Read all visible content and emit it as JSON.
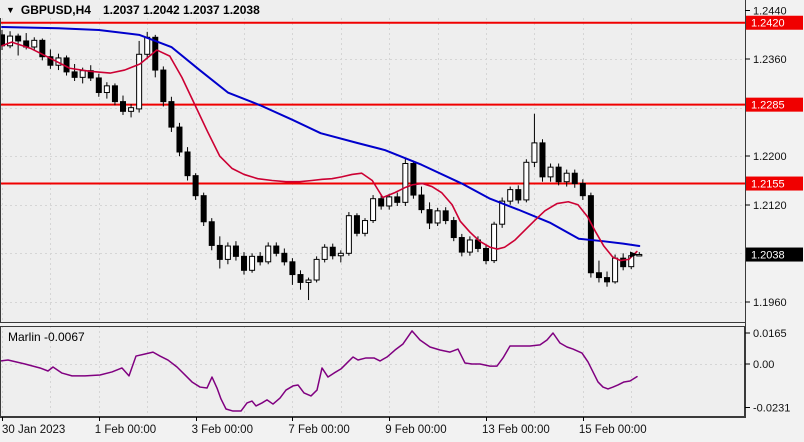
{
  "window": {
    "symbol_title": "GBPUSD,H4",
    "ohlc_readout": "1.2037 1.2042 1.2037 1.2038"
  },
  "chart_data": {
    "type": "candlestick",
    "symbol": "GBPUSD",
    "timeframe": "H4",
    "title": "GBPUSD,H4",
    "current_candle": {
      "open": 1.2037,
      "high": 1.2042,
      "low": 1.2037,
      "close": 1.2038
    },
    "current_price": 1.2038,
    "colors": {
      "background": "#eeeeee",
      "outer": "#f2f2f2",
      "grid": "#d5d5d5",
      "frame": "#3a3a3a",
      "level_line": "#f00000",
      "ma_slow": "#0000cc",
      "ma_fast": "#cc0033",
      "candle_up_fill": "#ffffff",
      "candle_down_fill": "#000000",
      "candle_stroke": "#000000",
      "indicator_line": "#800080",
      "badge_red": "#f00000",
      "badge_black": "#000000",
      "badge_text": "#ffffff",
      "axis_text": "#111111"
    },
    "price_axis": {
      "tick_labels": [
        {
          "label": "1.2440",
          "value": 1.244
        },
        {
          "label": "1.2360",
          "value": 1.236
        },
        {
          "label": "1.2200",
          "value": 1.22
        },
        {
          "label": "1.2120",
          "value": 1.212
        },
        {
          "label": "1.1960",
          "value": 1.196
        }
      ],
      "grid_top": 1.244,
      "grid_step": 0.008,
      "grid_count": 7,
      "badges": [
        {
          "label": "1.2420",
          "value": 1.242,
          "style": "red"
        },
        {
          "label": "1.2285",
          "value": 1.2285,
          "style": "red"
        },
        {
          "label": "1.2155",
          "value": 1.2155,
          "style": "red"
        },
        {
          "label": "1.2038",
          "value": 1.2038,
          "style": "black"
        }
      ]
    },
    "horizontal_lines": [
      1.242,
      1.2285,
      1.2155
    ],
    "x_axis": {
      "day_count": 14,
      "candles_per_day": 6,
      "labels": [
        {
          "day": 0,
          "label": "30 Jan 2023"
        },
        {
          "day": 2,
          "label": "1 Feb 00:00"
        },
        {
          "day": 4,
          "label": "3 Feb 00:00"
        },
        {
          "day": 6,
          "label": "7 Feb 00:00"
        },
        {
          "day": 8,
          "label": "9 Feb 00:00"
        },
        {
          "day": 10,
          "label": "13 Feb 00:00"
        },
        {
          "day": 12,
          "label": "15 Feb 00:00"
        }
      ]
    },
    "candles": [
      [
        1.24,
        1.2408,
        1.2375,
        1.2382
      ],
      [
        1.2382,
        1.2406,
        1.2378,
        1.2398
      ],
      [
        1.2398,
        1.2402,
        1.2366,
        1.239
      ],
      [
        1.239,
        1.2403,
        1.2376,
        1.238
      ],
      [
        1.238,
        1.2396,
        1.2374,
        1.2391
      ],
      [
        1.2391,
        1.2394,
        1.2358,
        1.2364
      ],
      [
        1.2364,
        1.2376,
        1.2344,
        1.235
      ],
      [
        1.235,
        1.2369,
        1.2342,
        1.2362
      ],
      [
        1.2362,
        1.2366,
        1.2333,
        1.2339
      ],
      [
        1.2339,
        1.2352,
        1.2324,
        1.233
      ],
      [
        1.233,
        1.2346,
        1.232,
        1.2341
      ],
      [
        1.2341,
        1.235,
        1.2324,
        1.2329
      ],
      [
        1.2329,
        1.2336,
        1.2298,
        1.2305
      ],
      [
        1.2305,
        1.2322,
        1.2295,
        1.2316
      ],
      [
        1.2316,
        1.232,
        1.2284,
        1.229
      ],
      [
        1.229,
        1.23,
        1.2268,
        1.2274
      ],
      [
        1.2274,
        1.2286,
        1.2264,
        1.228
      ],
      [
        1.2278,
        1.239,
        1.2272,
        1.2368
      ],
      [
        1.2368,
        1.2405,
        1.236,
        1.2396
      ],
      [
        1.2396,
        1.24,
        1.233,
        1.2342
      ],
      [
        1.2342,
        1.2348,
        1.2282,
        1.229
      ],
      [
        1.229,
        1.2298,
        1.224,
        1.2248
      ],
      [
        1.2248,
        1.2255,
        1.22,
        1.2207
      ],
      [
        1.2207,
        1.2215,
        1.216,
        1.2168
      ],
      [
        1.2168,
        1.2172,
        1.2128,
        1.2135
      ],
      [
        1.2135,
        1.214,
        1.2085,
        1.2092
      ],
      [
        1.2092,
        1.2098,
        1.2045,
        1.2053
      ],
      [
        1.2053,
        1.2068,
        1.2015,
        1.203
      ],
      [
        1.203,
        1.2058,
        1.2022,
        1.2052
      ],
      [
        1.2052,
        1.206,
        1.2028,
        1.2035
      ],
      [
        1.2035,
        1.2042,
        1.2005,
        1.2012
      ],
      [
        1.2012,
        1.204,
        1.2008,
        1.2035
      ],
      [
        1.2035,
        1.2042,
        1.202,
        1.2026
      ],
      [
        1.2026,
        1.2058,
        1.2022,
        1.2052
      ],
      [
        1.2052,
        1.2058,
        1.2035,
        1.204
      ],
      [
        1.204,
        1.2048,
        1.202,
        1.2026
      ],
      [
        1.2026,
        1.2032,
        1.1988,
        1.2005
      ],
      [
        1.2005,
        1.2012,
        1.198,
        1.1992
      ],
      [
        1.1992,
        1.2,
        1.1963,
        1.1996
      ],
      [
        1.1996,
        1.2035,
        1.1992,
        1.203
      ],
      [
        1.203,
        1.2055,
        1.2025,
        1.205
      ],
      [
        1.205,
        1.2056,
        1.203,
        1.2036
      ],
      [
        1.2036,
        1.2045,
        1.2025,
        1.204
      ],
      [
        1.204,
        1.2108,
        1.2036,
        1.2102
      ],
      [
        1.2102,
        1.2106,
        1.2068,
        1.2073
      ],
      [
        1.2073,
        1.2098,
        1.2068,
        1.2094
      ],
      [
        1.2094,
        1.2136,
        1.209,
        1.213
      ],
      [
        1.213,
        1.2136,
        1.2112,
        1.2118
      ],
      [
        1.2118,
        1.2138,
        1.2112,
        1.2133
      ],
      [
        1.2133,
        1.214,
        1.2118,
        1.2124
      ],
      [
        1.2124,
        1.2196,
        1.2118,
        1.2188
      ],
      [
        1.2188,
        1.2193,
        1.213,
        1.2136
      ],
      [
        1.2136,
        1.215,
        1.2106,
        1.2112
      ],
      [
        1.2112,
        1.2124,
        1.208,
        1.209
      ],
      [
        1.209,
        1.2115,
        1.2085,
        1.211
      ],
      [
        1.211,
        1.2116,
        1.2088,
        1.2094
      ],
      [
        1.2094,
        1.21,
        1.206,
        1.2066
      ],
      [
        1.2066,
        1.2072,
        1.2035,
        1.2042
      ],
      [
        1.2042,
        1.2068,
        1.2036,
        1.2062
      ],
      [
        1.2062,
        1.2068,
        1.2042,
        1.2048
      ],
      [
        1.2048,
        1.2054,
        1.2022,
        1.2028
      ],
      [
        1.2028,
        1.2092,
        1.2024,
        1.2088
      ],
      [
        1.2088,
        1.2132,
        1.2082,
        1.2126
      ],
      [
        1.2126,
        1.215,
        1.212,
        1.2145
      ],
      [
        1.2145,
        1.2152,
        1.2122,
        1.2128
      ],
      [
        1.2128,
        1.2195,
        1.2124,
        1.219
      ],
      [
        1.219,
        1.227,
        1.2182,
        1.2222
      ],
      [
        1.2222,
        1.2228,
        1.2158,
        1.2166
      ],
      [
        1.2166,
        1.2188,
        1.2158,
        1.2182
      ],
      [
        1.2182,
        1.2188,
        1.2152,
        1.2158
      ],
      [
        1.2158,
        1.2178,
        1.215,
        1.2172
      ],
      [
        1.2172,
        1.2178,
        1.2148,
        1.2155
      ],
      [
        1.2155,
        1.2162,
        1.2128,
        1.2135
      ],
      [
        1.2135,
        1.214,
        1.2,
        1.2008
      ],
      [
        1.2008,
        1.2028,
        1.1992,
        1.2
      ],
      [
        1.2,
        1.201,
        1.1985,
        1.1993
      ],
      [
        1.1993,
        1.2038,
        1.199,
        1.2032
      ],
      [
        1.2032,
        1.204,
        1.2012,
        1.2018
      ],
      [
        1.2018,
        1.204,
        1.2014,
        1.2036
      ],
      [
        1.2037,
        1.2042,
        1.2037,
        1.2038
      ]
    ],
    "ma_slow_blue": [
      [
        0,
        1.2413
      ],
      [
        7,
        1.2411
      ],
      [
        12,
        1.2408
      ],
      [
        17,
        1.24
      ],
      [
        21,
        1.238
      ],
      [
        24.5,
        1.2342
      ],
      [
        28,
        1.2305
      ],
      [
        32,
        1.2284
      ],
      [
        36,
        1.226
      ],
      [
        39.5,
        1.2238
      ],
      [
        44,
        1.2222
      ],
      [
        47.5,
        1.221
      ],
      [
        52,
        1.2186
      ],
      [
        57,
        1.2155
      ],
      [
        60.5,
        1.213
      ],
      [
        64,
        1.2112
      ],
      [
        68,
        1.209
      ],
      [
        71.5,
        1.2064
      ],
      [
        74.5,
        1.206
      ],
      [
        77,
        1.2056
      ],
      [
        79,
        1.2052
      ]
    ],
    "ma_fast_red": [
      [
        0,
        1.2382
      ],
      [
        1.2,
        1.2388
      ],
      [
        3.5,
        1.2378
      ],
      [
        5.9,
        1.2362
      ],
      [
        8.4,
        1.2345
      ],
      [
        10.9,
        1.234
      ],
      [
        13.4,
        1.2337
      ],
      [
        15.2,
        1.2342
      ],
      [
        17.1,
        1.2352
      ],
      [
        19.2,
        1.2375
      ],
      [
        20.8,
        1.2365
      ],
      [
        22.3,
        1.233
      ],
      [
        23.9,
        1.2285
      ],
      [
        25.5,
        1.224
      ],
      [
        27,
        1.22
      ],
      [
        28.5,
        1.218
      ],
      [
        30,
        1.217
      ],
      [
        31.7,
        1.2163
      ],
      [
        33.5,
        1.216
      ],
      [
        35.2,
        1.2158
      ],
      [
        36.9,
        1.2158
      ],
      [
        38.4,
        1.216
      ],
      [
        39.7,
        1.2162
      ],
      [
        40.9,
        1.2163
      ],
      [
        42.1,
        1.2166
      ],
      [
        43.4,
        1.217
      ],
      [
        44.6,
        1.2172
      ],
      [
        45.9,
        1.216
      ],
      [
        47.2,
        1.2132
      ],
      [
        48.7,
        1.214
      ],
      [
        49.9,
        1.2148
      ],
      [
        50.9,
        1.2153
      ],
      [
        52.1,
        1.2155
      ],
      [
        53.3,
        1.215
      ],
      [
        54.5,
        1.214
      ],
      [
        55.8,
        1.212
      ],
      [
        56.8,
        1.2093
      ],
      [
        58,
        1.2075
      ],
      [
        59.2,
        1.206
      ],
      [
        60.5,
        1.205
      ],
      [
        61.4,
        1.2047
      ],
      [
        62.3,
        1.205
      ],
      [
        63.6,
        1.2062
      ],
      [
        64.8,
        1.2078
      ],
      [
        66.1,
        1.2095
      ],
      [
        67.3,
        1.211
      ],
      [
        68.8,
        1.2122
      ],
      [
        70.2,
        1.2125
      ],
      [
        71.4,
        1.212
      ],
      [
        72.6,
        1.21
      ],
      [
        73.6,
        1.2075
      ],
      [
        74.6,
        1.2052
      ],
      [
        75.7,
        1.2034
      ],
      [
        76.7,
        1.2028
      ],
      [
        77.7,
        1.203
      ],
      [
        78.7,
        1.2043
      ]
    ],
    "indicator": {
      "name": "Marlin",
      "last_value": -0.0067,
      "display": "Marlin -0.0067",
      "axis_ticks": [
        {
          "label": "0.0165",
          "value": 0.0165
        },
        {
          "label": "0.00",
          "value": 0.0
        },
        {
          "label": "-0.0231",
          "value": -0.0231
        }
      ],
      "zero_line": 0.0,
      "points": [
        [
          0,
          0.0016
        ],
        [
          8,
          0.0021
        ],
        [
          25,
          0.0
        ],
        [
          40,
          -0.0021
        ],
        [
          48,
          -0.0037
        ],
        [
          53,
          -0.0016
        ],
        [
          62,
          -0.0048
        ],
        [
          72,
          -0.0063
        ],
        [
          85,
          -0.0063
        ],
        [
          100,
          -0.0058
        ],
        [
          112,
          -0.0042
        ],
        [
          122,
          -0.0021
        ],
        [
          129,
          -0.0063
        ],
        [
          136,
          0.0042
        ],
        [
          145,
          0.0053
        ],
        [
          153,
          0.0063
        ],
        [
          160,
          0.0042
        ],
        [
          168,
          0.0021
        ],
        [
          177,
          -0.0016
        ],
        [
          185,
          -0.0058
        ],
        [
          192,
          -0.0095
        ],
        [
          200,
          -0.0122
        ],
        [
          207,
          -0.0127
        ],
        [
          212,
          -0.0069
        ],
        [
          217,
          -0.0127
        ],
        [
          221,
          -0.0185
        ],
        [
          226,
          -0.0238
        ],
        [
          233,
          -0.0249
        ],
        [
          241,
          -0.0249
        ],
        [
          247,
          -0.0206
        ],
        [
          252,
          -0.0196
        ],
        [
          256,
          -0.0222
        ],
        [
          262,
          -0.0206
        ],
        [
          267,
          -0.019
        ],
        [
          273,
          -0.0212
        ],
        [
          280,
          -0.018
        ],
        [
          286,
          -0.0138
        ],
        [
          293,
          -0.0116
        ],
        [
          298,
          -0.0111
        ],
        [
          304,
          -0.0153
        ],
        [
          311,
          -0.0169
        ],
        [
          317,
          -0.0138
        ],
        [
          322,
          -0.0021
        ],
        [
          328,
          -0.0069
        ],
        [
          334,
          -0.0048
        ],
        [
          341,
          -0.0026
        ],
        [
          348,
          0.0011
        ],
        [
          353,
          0.0037
        ],
        [
          358,
          0.0021
        ],
        [
          366,
          0.0032
        ],
        [
          374,
          0.0032
        ],
        [
          380,
          0.0016
        ],
        [
          387,
          0.0037
        ],
        [
          395,
          0.0074
        ],
        [
          403,
          0.0106
        ],
        [
          412,
          0.0175
        ],
        [
          420,
          0.0127
        ],
        [
          430,
          0.009
        ],
        [
          440,
          0.0074
        ],
        [
          450,
          0.0063
        ],
        [
          458,
          0.0079
        ],
        [
          465,
          0.0005
        ],
        [
          472,
          0.0
        ],
        [
          480,
          0.0
        ],
        [
          490,
          -0.0011
        ],
        [
          497,
          -0.0011
        ],
        [
          503,
          0.0032
        ],
        [
          510,
          0.0095
        ],
        [
          520,
          0.0095
        ],
        [
          530,
          0.0095
        ],
        [
          540,
          0.0101
        ],
        [
          547,
          0.0127
        ],
        [
          553,
          0.0164
        ],
        [
          560,
          0.0111
        ],
        [
          567,
          0.009
        ],
        [
          573,
          0.0079
        ],
        [
          582,
          0.0058
        ],
        [
          588,
          0.0011
        ],
        [
          593,
          -0.0042
        ],
        [
          598,
          -0.0095
        ],
        [
          603,
          -0.0122
        ],
        [
          608,
          -0.0132
        ],
        [
          613,
          -0.0122
        ],
        [
          618,
          -0.0111
        ],
        [
          624,
          -0.0095
        ],
        [
          630,
          -0.009
        ],
        [
          637,
          -0.0067
        ]
      ]
    }
  }
}
